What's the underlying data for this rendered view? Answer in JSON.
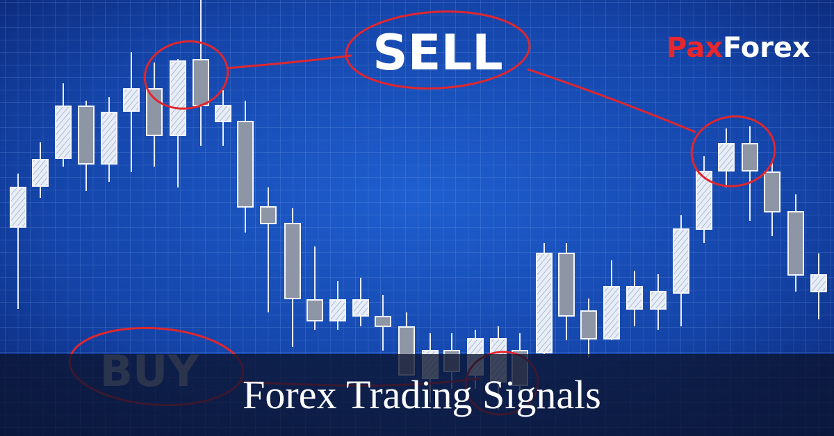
{
  "logo": {
    "first": "Pax",
    "second": "Forex"
  },
  "labels": {
    "sell": "SELL",
    "buy": "BUY"
  },
  "banner": {
    "title": "Forex Trading Signals"
  }
}
